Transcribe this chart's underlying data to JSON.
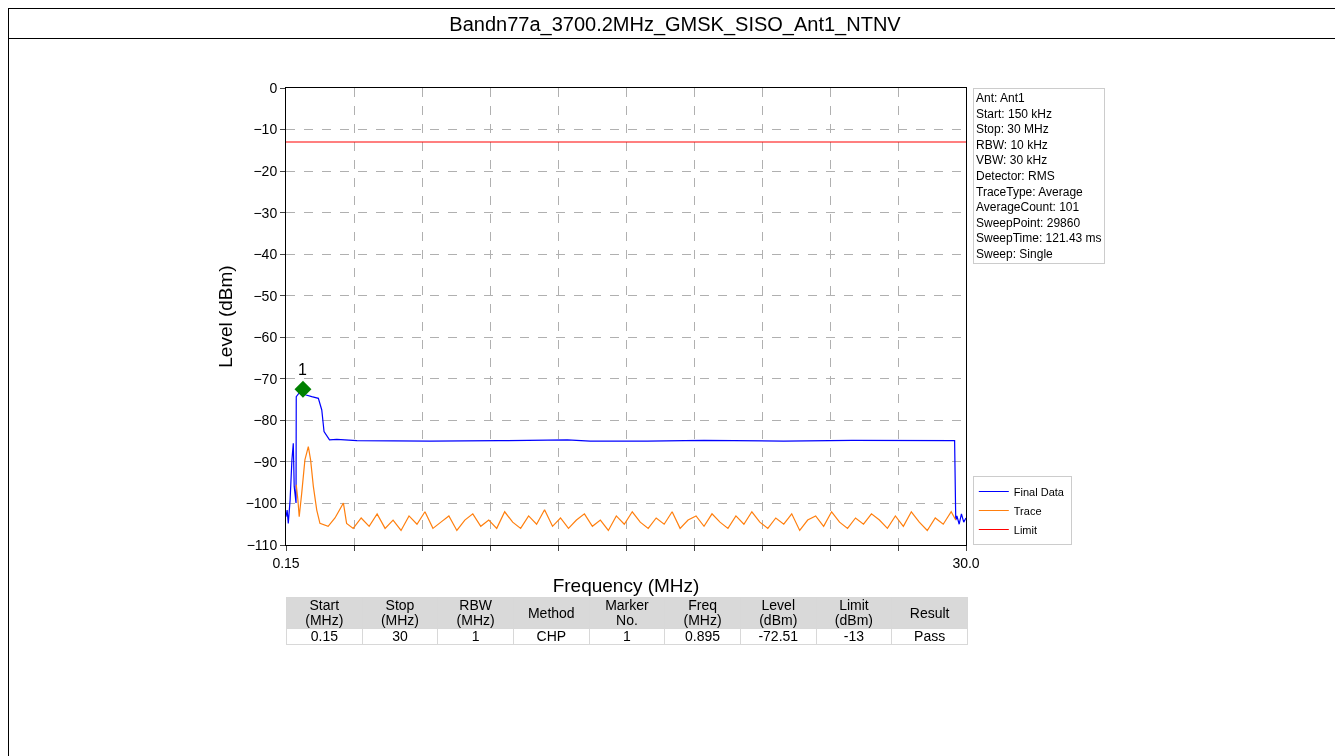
{
  "chart_data": {
    "type": "line",
    "title": "Bandn77a_3700.2MHz_GMSK_SISO_Ant1_NTNV",
    "xlabel": "Frequency (MHz)",
    "ylabel": "Level (dBm)",
    "xlim": [
      0.15,
      30
    ],
    "xticks": [
      0.15,
      {
        "value": 3.135,
        "label": null
      },
      {
        "value": 6.12,
        "label": null
      },
      {
        "value": 9.105,
        "label": null
      },
      {
        "value": 12.09,
        "label": null
      },
      {
        "value": 15.075,
        "label": null
      },
      {
        "value": 18.06,
        "label": null
      },
      {
        "value": 21.045,
        "label": null
      },
      {
        "value": 24.03,
        "label": null
      },
      {
        "value": 27.015,
        "label": null
      },
      {
        "value": 30,
        "label": "30.0"
      }
    ],
    "ylim": [
      -110,
      0
    ],
    "yticks": [
      -110,
      -100,
      -90,
      -80,
      -70,
      -60,
      -50,
      -40,
      -30,
      -20,
      -10,
      0
    ],
    "grid": true,
    "legend": "bottom right",
    "line_style": "solid",
    "marker": "none",
    "series": [
      {
        "name": "Final Data",
        "color": "#0000ff",
        "x": [
          0.15,
          0.2,
          0.25,
          0.33,
          0.41,
          0.47,
          0.51,
          0.59,
          0.6,
          0.77,
          1.03,
          1.28,
          1.57,
          1.72,
          1.82,
          2.06,
          2.38,
          3.26,
          6.47,
          9.5,
          12.5,
          13.5,
          16,
          18.5,
          22,
          25,
          29.5,
          29.55,
          29.6,
          29.7,
          29.8,
          29.9,
          30
        ],
        "values": [
          -103.2,
          -101.6,
          -104.8,
          -99.2,
          -89.5,
          -85.5,
          -95.9,
          -99.9,
          -74.3,
          -73.1,
          -73.9,
          -74.3,
          -74.7,
          -77.5,
          -82.7,
          -84.7,
          -84.6,
          -84.9,
          -85,
          -84.9,
          -84.7,
          -85,
          -85,
          -84.8,
          -85,
          -84.8,
          -84.9,
          -104,
          -103,
          -105,
          -102.5,
          -104.5,
          -103.5
        ]
      },
      {
        "name": "Trace",
        "color": "#ff7f0e",
        "x": [
          0.6,
          0.67,
          0.73,
          0.84,
          0.98,
          1.13,
          1.23,
          1.35,
          1.5,
          1.64,
          2.0,
          2.3,
          2.67,
          2.81,
          3.1,
          3.45,
          3.8,
          4.15,
          4.5,
          4.85,
          5.2,
          5.55,
          5.9,
          6.25,
          6.6,
          6.95,
          7.3,
          7.65,
          8.0,
          8.35,
          8.7,
          9.05,
          9.4,
          9.75,
          10.1,
          10.45,
          10.8,
          11.15,
          11.5,
          11.85,
          12.2,
          12.55,
          12.9,
          13.25,
          13.6,
          13.95,
          14.3,
          14.65,
          15.0,
          15.35,
          15.7,
          16.05,
          16.4,
          16.75,
          17.1,
          17.45,
          17.8,
          18.15,
          18.5,
          18.85,
          19.2,
          19.55,
          19.9,
          20.25,
          20.6,
          20.95,
          21.3,
          21.65,
          22.0,
          22.35,
          22.7,
          23.05,
          23.4,
          23.75,
          24.1,
          24.45,
          24.8,
          25.15,
          25.5,
          25.85,
          26.2,
          26.55,
          26.9,
          27.25,
          27.6,
          27.95,
          28.3,
          28.65,
          29.0,
          29.35,
          29.55
        ],
        "values": [
          -95.5,
          -99,
          -103.2,
          -97.5,
          -89.5,
          -86.3,
          -89.5,
          -95.9,
          -101.6,
          -104.8,
          -105.5,
          -103.5,
          -99.9,
          -104.8,
          -106,
          -103.5,
          -105.5,
          -102.5,
          -106,
          -104,
          -106.5,
          -103,
          -105,
          -102,
          -106,
          -104.5,
          -103,
          -106.5,
          -104,
          -102.5,
          -105.5,
          -104,
          -106,
          -102,
          -104.5,
          -106,
          -103,
          -105,
          -101.5,
          -105.5,
          -103.5,
          -106,
          -104,
          -102.5,
          -105.5,
          -104,
          -106.5,
          -103,
          -105,
          -102,
          -104.5,
          -106,
          -103.5,
          -105,
          -102,
          -106,
          -104,
          -103,
          -105.5,
          -102.5,
          -104.5,
          -106,
          -103,
          -105,
          -102,
          -104.5,
          -106,
          -103.5,
          -105,
          -102.5,
          -106.5,
          -104,
          -103,
          -105.5,
          -102,
          -104.5,
          -106,
          -103.5,
          -105,
          -102.5,
          -104,
          -106,
          -103,
          -105.5,
          -102,
          -104.5,
          -106.5,
          -103.5,
          -105,
          -102,
          -104
        ]
      },
      {
        "name": "Limit",
        "color": "#ff0000",
        "x": [
          0.15,
          30
        ],
        "values": [
          -13,
          -13
        ]
      },
      {
        "type": "scatter",
        "color": "#008000",
        "marker": "diamond",
        "x": [
          0.895
        ],
        "values": [
          -72.51
        ]
      }
    ],
    "annotations": [
      {
        "text": "1",
        "x": 0.895,
        "y": -72.51
      },
      "Ant: Ant1\nStart: 150 kHz\nStop: 30 MHz\nRBW: 10 kHz\nVBW: 30 kHz\nDetector: RMS\nTraceType: Average\nAverageCount: 101\nSweepPoint: 29860\nSweepTime: 121.43 ms\nSweep: Single",
      "Start\n(MHz)",
      "Stop\n(MHz)",
      "RBW\n(MHz)",
      "Method",
      "Marker\nNo.",
      "Freq\n(MHz)",
      "Level\n(dBm)",
      "Limit\n(dBm)",
      "Result",
      "0.15",
      "30",
      "1",
      "CHP",
      "1",
      "0.895",
      "-72.51",
      "-13",
      "Pass"
    ]
  }
}
